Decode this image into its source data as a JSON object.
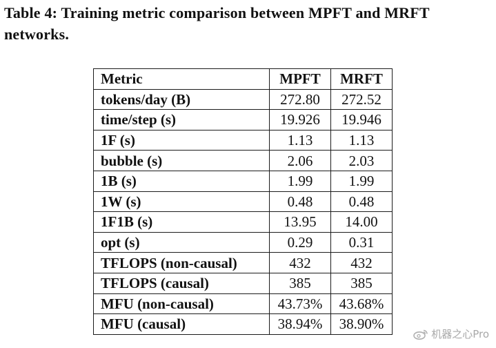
{
  "caption": "Table 4: Training metric comparison between MPFT and MRFT networks.",
  "table": {
    "headers": [
      "Metric",
      "MPFT",
      "MRFT"
    ],
    "rows": [
      {
        "metric": "tokens/day (B)",
        "mpft": "272.80",
        "mrft": "272.52"
      },
      {
        "metric": "time/step (s)",
        "mpft": "19.926",
        "mrft": "19.946"
      },
      {
        "metric": "1F (s)",
        "mpft": "1.13",
        "mrft": "1.13"
      },
      {
        "metric": "bubble (s)",
        "mpft": "2.06",
        "mrft": "2.03"
      },
      {
        "metric": "1B (s)",
        "mpft": "1.99",
        "mrft": "1.99"
      },
      {
        "metric": "1W (s)",
        "mpft": "0.48",
        "mrft": "0.48"
      },
      {
        "metric": "1F1B (s)",
        "mpft": "13.95",
        "mrft": "14.00"
      },
      {
        "metric": "opt (s)",
        "mpft": "0.29",
        "mrft": "0.31"
      },
      {
        "metric": "TFLOPS (non-causal)",
        "mpft": "432",
        "mrft": "432"
      },
      {
        "metric": "TFLOPS (causal)",
        "mpft": "385",
        "mrft": "385"
      },
      {
        "metric": "MFU (non-causal)",
        "mpft": "43.73%",
        "mrft": "43.68%"
      },
      {
        "metric": "MFU (causal)",
        "mpft": "38.94%",
        "mrft": "38.90%"
      }
    ]
  },
  "watermark": {
    "text": "机器之心Pro",
    "icon": "weibo-logo-icon"
  }
}
